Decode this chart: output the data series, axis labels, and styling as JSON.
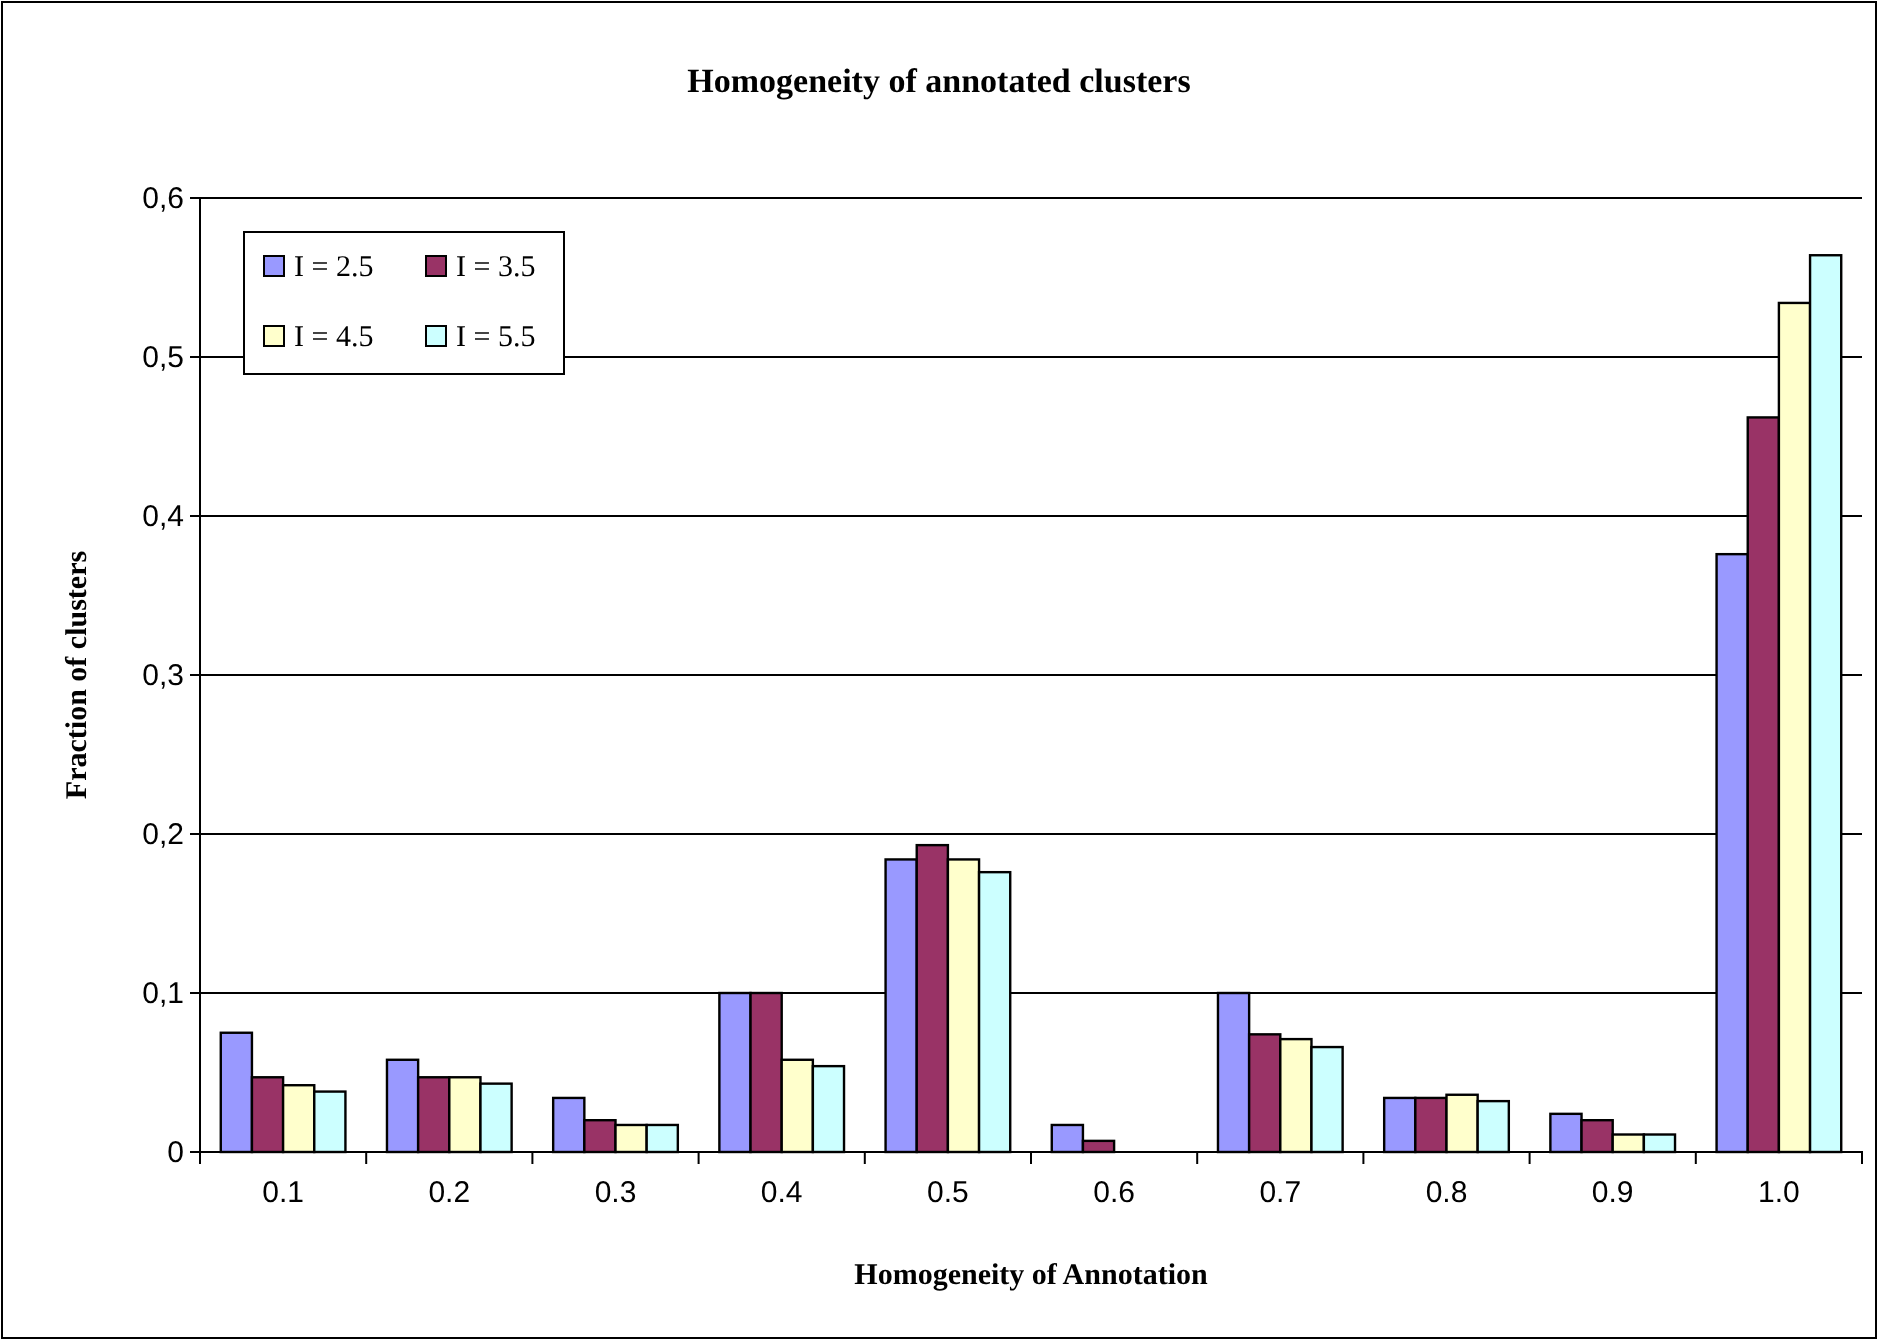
{
  "chart_data": {
    "type": "bar",
    "title": "Homogeneity of annotated clusters",
    "xlabel": "Homogeneity of Annotation",
    "ylabel": "Fraction of clusters",
    "categories": [
      "0.1",
      "0.2",
      "0.3",
      "0.4",
      "0.5",
      "0.6",
      "0.7",
      "0.8",
      "0.9",
      "1.0"
    ],
    "series": [
      {
        "name": "I = 2.5",
        "color": "#9999ff",
        "values": [
          0.075,
          0.058,
          0.034,
          0.1,
          0.184,
          0.017,
          0.1,
          0.034,
          0.024,
          0.376
        ]
      },
      {
        "name": "I = 3.5",
        "color": "#993366",
        "values": [
          0.047,
          0.047,
          0.02,
          0.1,
          0.193,
          0.007,
          0.074,
          0.034,
          0.02,
          0.462
        ]
      },
      {
        "name": "I = 4.5",
        "color": "#ffffcc",
        "values": [
          0.042,
          0.047,
          0.017,
          0.058,
          0.184,
          0,
          0.071,
          0.036,
          0.011,
          0.534
        ]
      },
      {
        "name": "I = 5.5",
        "color": "#ccffff",
        "values": [
          0.038,
          0.043,
          0.017,
          0.054,
          0.176,
          0,
          0.066,
          0.032,
          0.011,
          0.564
        ]
      }
    ],
    "ylim": [
      0,
      0.6
    ],
    "yticks": [
      0,
      {
        "value": 0.1,
        "label": "0,1"
      },
      {
        "value": 0.2,
        "label": "0,2"
      },
      {
        "value": 0.3,
        "label": "0,3"
      },
      {
        "value": 0.4,
        "label": "0,4"
      },
      {
        "value": 0.5,
        "label": "0,5"
      },
      {
        "value": 0.6,
        "label": "0,6"
      }
    ],
    "grid": "y",
    "legend": "top left"
  }
}
